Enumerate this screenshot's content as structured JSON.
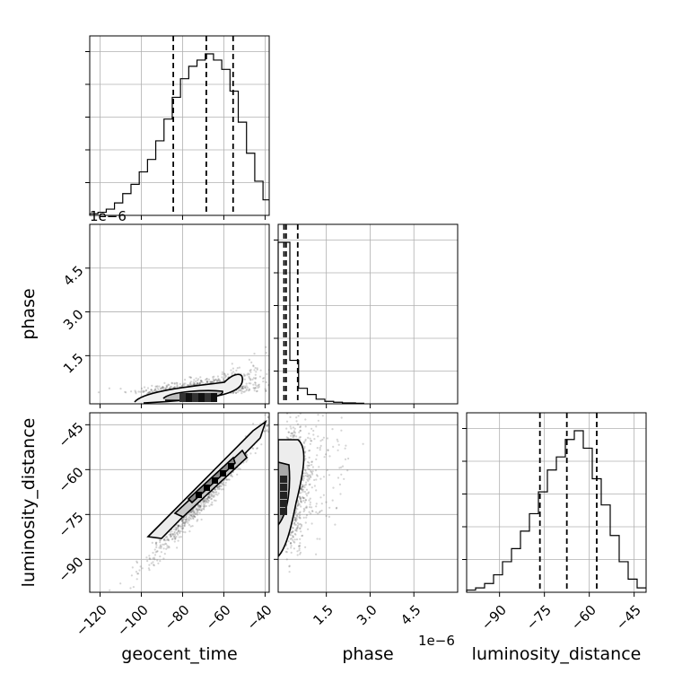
{
  "chart_data": {
    "type": "corner",
    "parameters": [
      "geocent_time",
      "phase",
      "luminosity_distance"
    ],
    "axis_labels": {
      "x": [
        "geocent_time",
        "phase",
        "luminosity_distance"
      ],
      "y": [
        "phase",
        "luminosity_distance"
      ]
    },
    "offset_texts": {
      "phase_y": "1e−6",
      "phase_x": "1e−6"
    },
    "ticks": {
      "geocent_time": {
        "values": [
          -120,
          -100,
          -80,
          -60,
          -40
        ],
        "labels": [
          "−120",
          "−100",
          "−80",
          "−60",
          "−40"
        ]
      },
      "phase": {
        "values": [
          1.5,
          3.0,
          4.5
        ],
        "labels": [
          "1.5",
          "3.0",
          "4.5"
        ]
      },
      "luminosity_distance": {
        "values": [
          -90,
          -75,
          -60,
          -45
        ],
        "labels": [
          "−90",
          "−75",
          "−60",
          "−45"
        ]
      }
    },
    "ranges": {
      "geocent_time": [
        -125,
        -38
      ],
      "phase": [
        -0.15,
        6.0
      ],
      "luminosity_distance": [
        -101,
        -41
      ]
    },
    "histograms": {
      "geocent_time": {
        "bin_edges": [
          -125,
          -121,
          -117,
          -113,
          -109,
          -105,
          -101,
          -97,
          -93,
          -89,
          -85,
          -81,
          -77,
          -73,
          -69,
          -65,
          -61,
          -57,
          -53,
          -49,
          -45,
          -41,
          -38
        ],
        "counts": [
          0.5,
          1,
          2,
          4,
          7,
          10,
          14,
          18,
          24,
          31,
          38,
          44,
          48,
          50,
          52,
          50,
          47,
          40,
          30,
          20,
          11,
          5
        ],
        "quantiles": [
          -84.5,
          -68.5,
          -55.5
        ]
      },
      "phase": {
        "bin_edges": [
          -0.15,
          0.0,
          0.25,
          0.55,
          0.85,
          1.15,
          1.45,
          1.75,
          2.05,
          2.5,
          2.8
        ],
        "counts": [
          52,
          52,
          14,
          5,
          3,
          1.5,
          0.8,
          0.5,
          0.3,
          0.2
        ],
        "quantiles": [
          0.05,
          0.12,
          0.52
        ]
      },
      "luminosity_distance": {
        "bin_edges": [
          -101,
          -98,
          -95,
          -92,
          -89,
          -86,
          -83,
          -80,
          -77,
          -74,
          -71,
          -68,
          -65,
          -62,
          -59,
          -56,
          -53,
          -50,
          -47,
          -44,
          -41
        ],
        "counts": [
          0.5,
          1,
          2,
          4,
          7,
          10,
          14,
          18,
          23,
          28,
          31,
          35,
          37,
          33,
          26,
          20,
          13,
          7,
          3,
          1
        ],
        "quantiles": [
          -76.5,
          -67.5,
          -57.5
        ]
      }
    },
    "scatter_2d": [
      {
        "x": "geocent_time",
        "y": "phase",
        "description_label": "",
        "contour_levels": 2
      },
      {
        "x": "geocent_time",
        "y": "luminosity_distance",
        "contour_levels": 3
      },
      {
        "x": "phase",
        "y": "luminosity_distance",
        "contour_levels": 2
      }
    ],
    "grid": true
  }
}
